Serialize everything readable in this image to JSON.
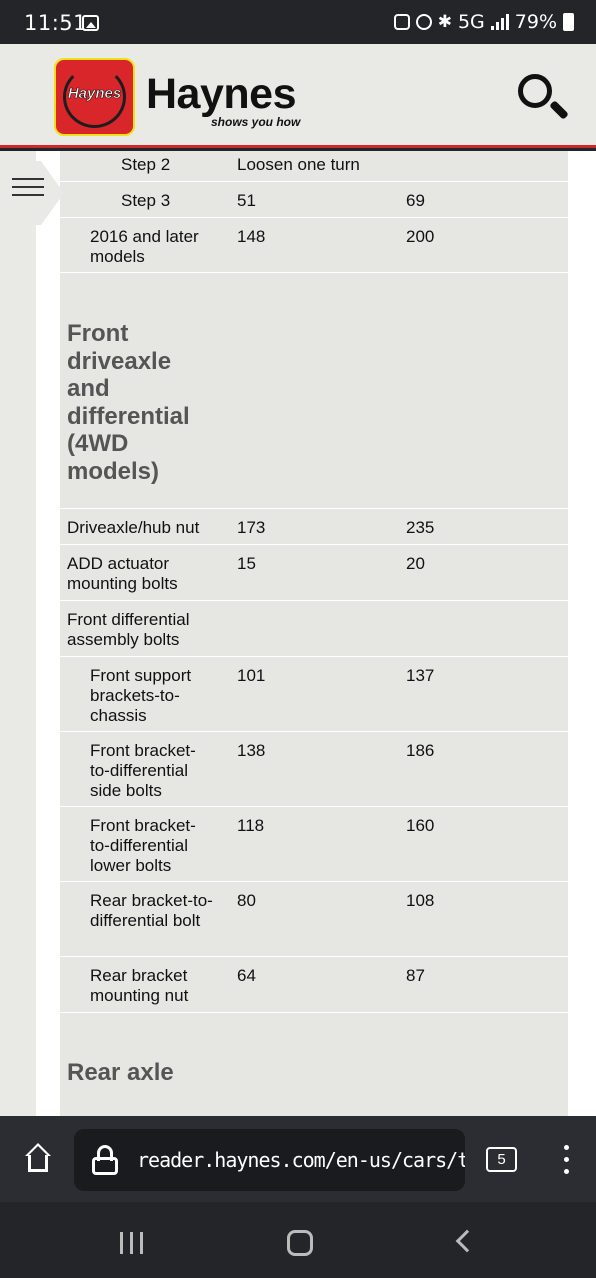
{
  "status_bar": {
    "time": "11:51",
    "network": "5G",
    "battery": "79%"
  },
  "header": {
    "logo_text": "Haynes",
    "brand": "Haynes",
    "tagline": "shows you how"
  },
  "table": {
    "rows": [
      {
        "item": "Step 2",
        "value1": "Loosen one turn",
        "value2": ""
      },
      {
        "item": "Step 3",
        "value1": "51",
        "value2": "69"
      },
      {
        "item": "2016 and later models",
        "value1": "148",
        "value2": "200"
      },
      {
        "section": "Front driveaxle and differential (4WD models)"
      },
      {
        "item": "Driveaxle/hub nut",
        "value1": "173",
        "value2": "235"
      },
      {
        "item": "ADD actuator mounting bolts",
        "value1": "15",
        "value2": "20"
      },
      {
        "item": "Front differential assembly bolts",
        "value1": "",
        "value2": ""
      },
      {
        "item": "Front support brackets-to-chassis",
        "value1": "101",
        "value2": "137"
      },
      {
        "item": "Front bracket-to-differential side bolts",
        "value1": "138",
        "value2": "186"
      },
      {
        "item": "Front bracket-to-differential lower bolts",
        "value1": "118",
        "value2": "160"
      },
      {
        "item": "Rear bracket-to-differential bolt",
        "value1": "80",
        "value2": "108"
      },
      {
        "item": "Rear bracket mounting nut",
        "value1": "64",
        "value2": "87"
      },
      {
        "section": "Rear axle"
      }
    ]
  },
  "browser": {
    "url": "reader.haynes.com/en-us/cars/toyot",
    "tab_count": "5"
  }
}
